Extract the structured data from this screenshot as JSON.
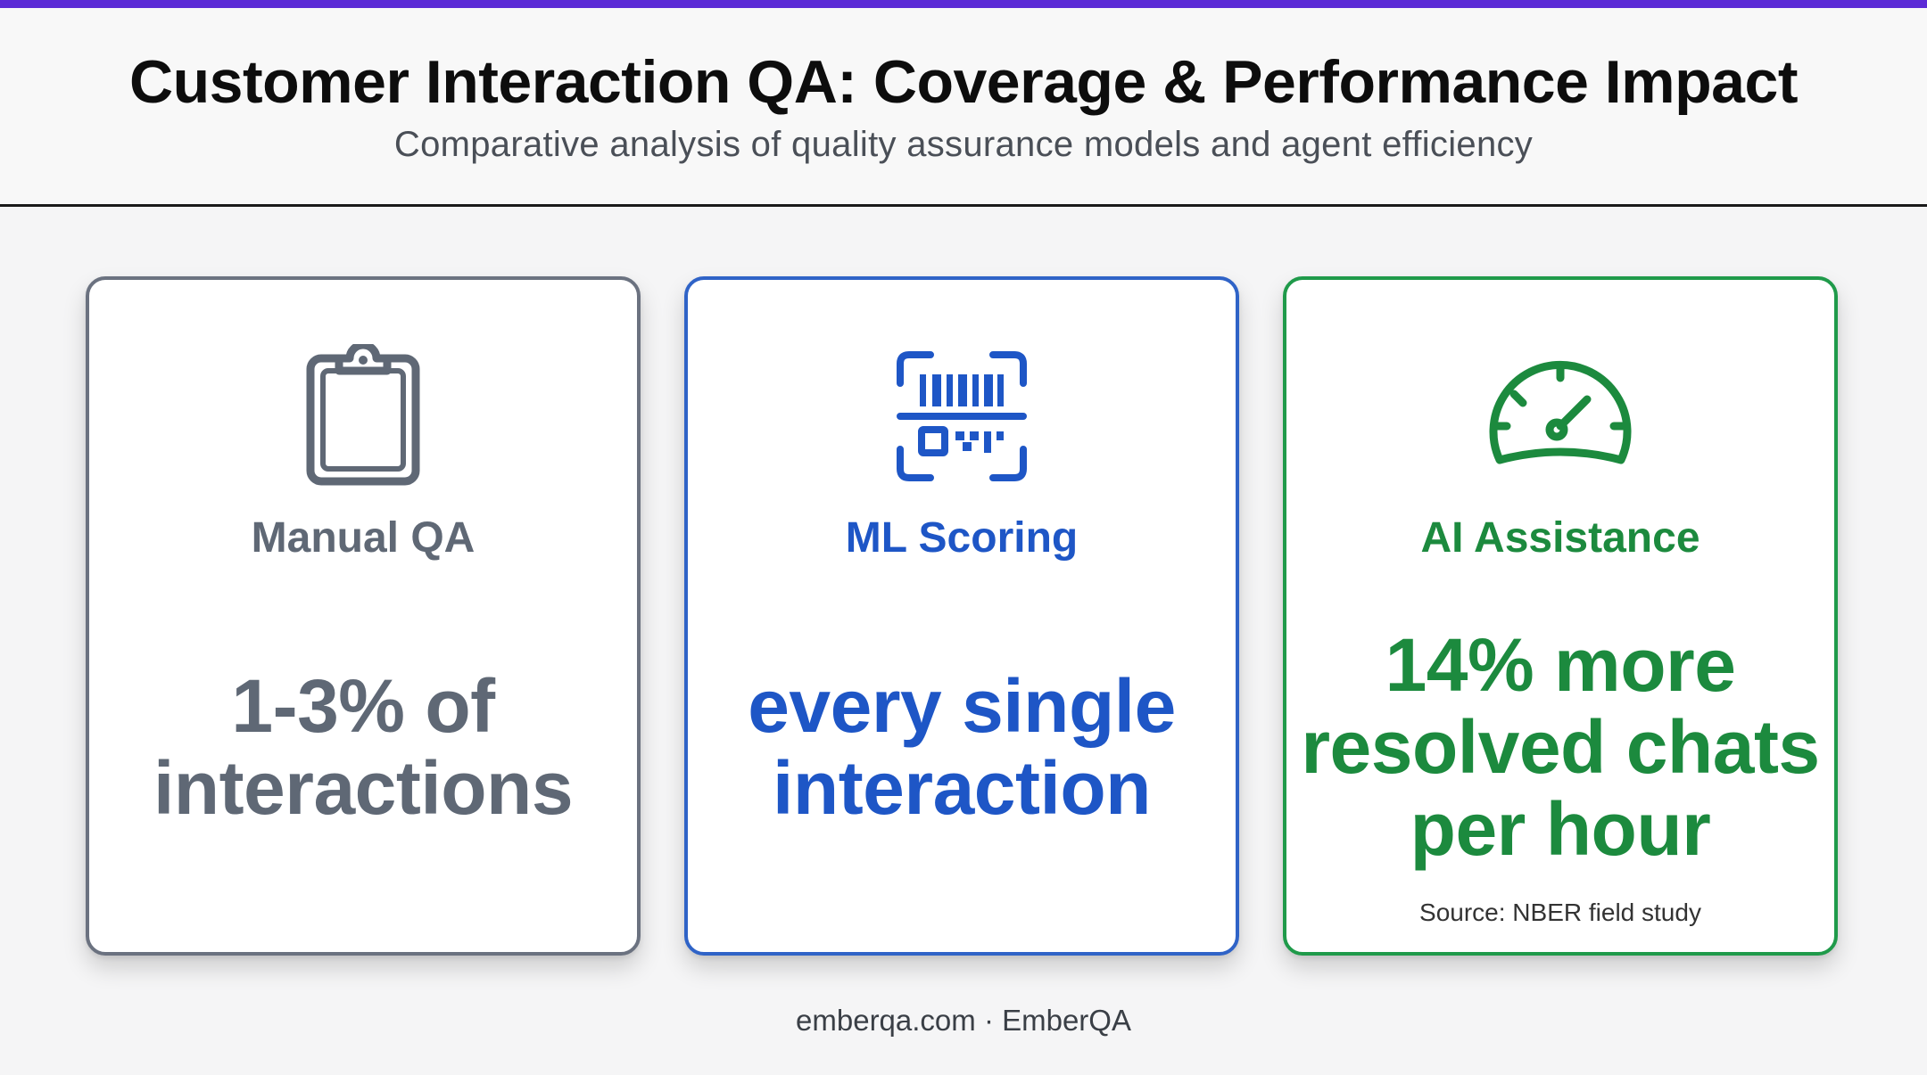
{
  "header": {
    "title": "Customer Interaction QA: Coverage & Performance Impact",
    "subtitle": "Comparative analysis of quality assurance models and agent efficiency"
  },
  "colors": {
    "accent_bar": "#5b2bd6",
    "manual": "#5f6875",
    "manual_border": "#6b7280",
    "ml": "#1e56c6",
    "ml_border": "#2f63c7",
    "ai": "#1c8a3e",
    "ai_border": "#1f9a4a"
  },
  "cards": [
    {
      "icon": "clipboard-icon",
      "title": "Manual QA",
      "metric_lines": [
        "1-3% of",
        "interactions"
      ]
    },
    {
      "icon": "barcode-scanner-icon",
      "title": "ML Scoring",
      "metric_lines": [
        "every single",
        "interaction"
      ]
    },
    {
      "icon": "speedometer-icon",
      "title": "AI Assistance",
      "metric_lines": [
        "14% more",
        "resolved chats",
        "per hour"
      ],
      "source": "Source: NBER field study"
    }
  ],
  "footer": {
    "text": "emberqa.com · EmberQA"
  }
}
